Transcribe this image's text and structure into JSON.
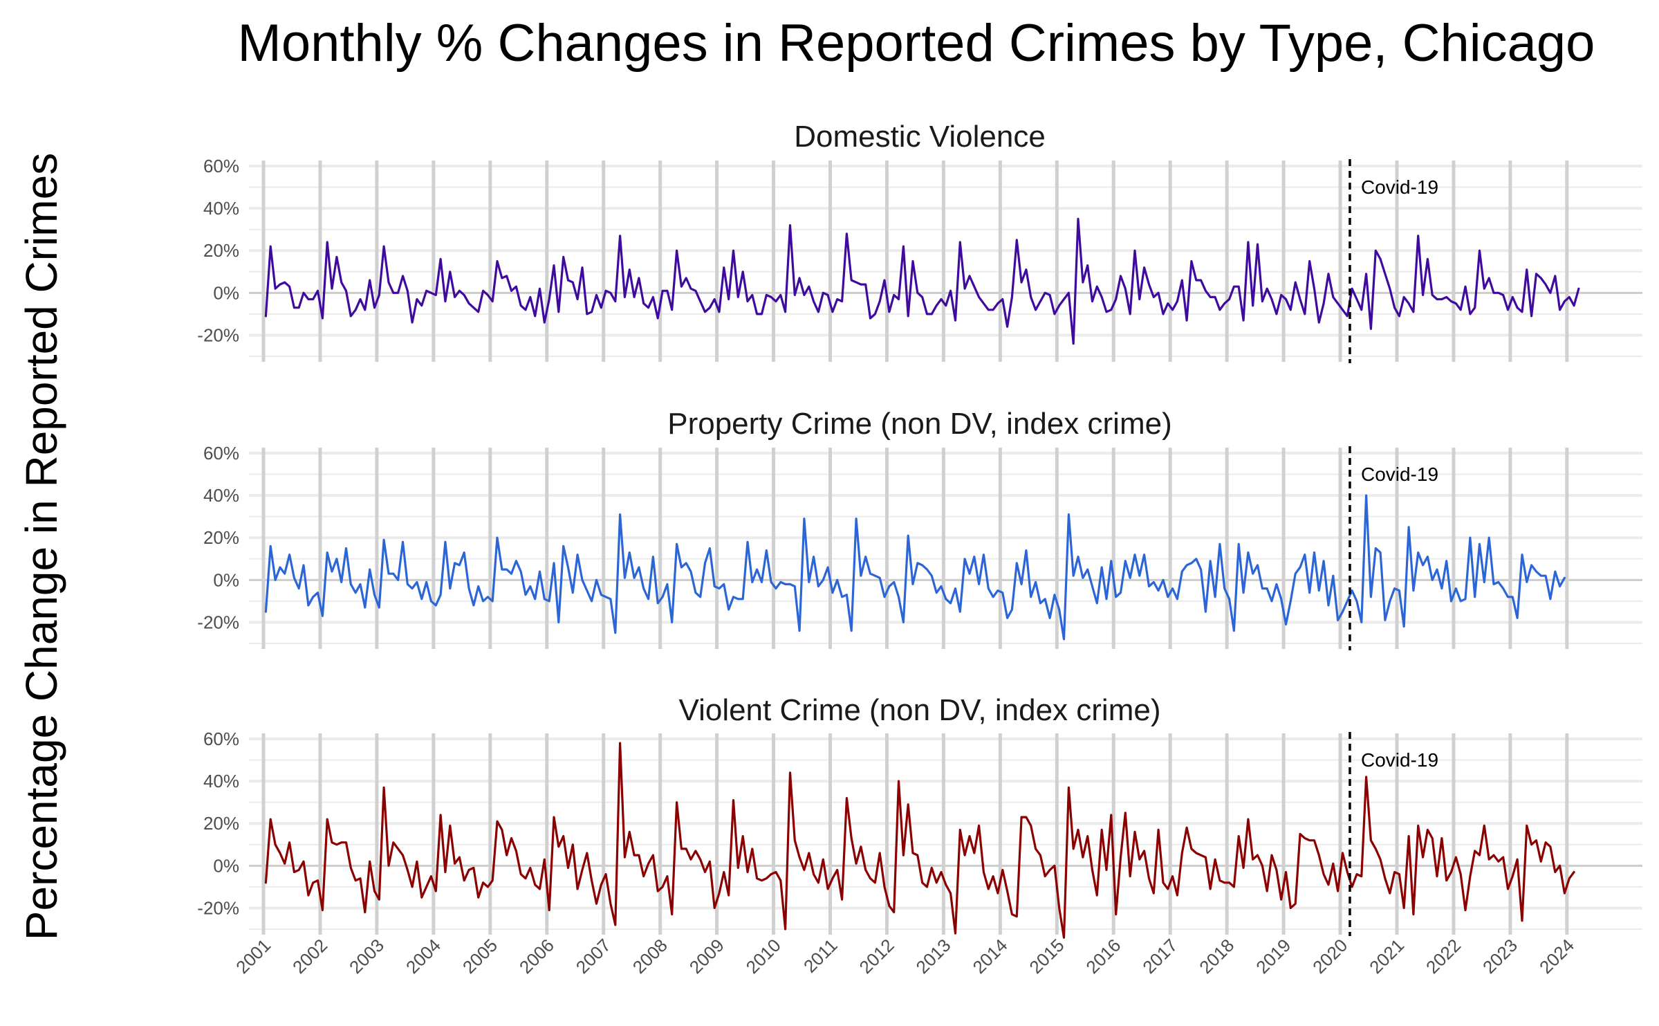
{
  "chart_data": {
    "type": "line",
    "title": "Monthly % Changes in Reported Crimes by Type, Chicago",
    "ylabel": "Percentage Change in Reported Crimes",
    "xlabel": "",
    "ylim": [
      -30,
      60
    ],
    "yticks": [
      -20,
      0,
      20,
      40,
      60
    ],
    "ytick_labels": [
      "-20%",
      "0%",
      "20%",
      "40%",
      "60%"
    ],
    "xlim": [
      2001,
      2024
    ],
    "xticks": [
      "2001",
      "2002",
      "2003",
      "2004",
      "2005",
      "2006",
      "2007",
      "2008",
      "2009",
      "2010",
      "2011",
      "2012",
      "2013",
      "2014",
      "2015",
      "2016",
      "2017",
      "2018",
      "2019",
      "2020",
      "2021",
      "2022",
      "2023",
      "2024"
    ],
    "grid": true,
    "legend": "none",
    "annotation": {
      "label": "Covid-19",
      "x": 2020.17,
      "style": "dashed vertical line"
    },
    "panels": [
      {
        "name": "Domestic Violence",
        "color": "#3f0a9e",
        "values": [
          -11,
          22,
          2,
          4,
          5,
          3,
          -7,
          -7,
          0,
          -3,
          -3,
          1,
          -12,
          24,
          2,
          17,
          5,
          1,
          -11,
          -8,
          -3,
          -8,
          6,
          -7,
          -1,
          22,
          5,
          0,
          0,
          8,
          1,
          -14,
          -3,
          -6,
          1,
          0,
          -1,
          16,
          -4,
          10,
          -2,
          1,
          -1,
          -5,
          -7,
          -9,
          1,
          -1,
          -4,
          15,
          7,
          8,
          1,
          3,
          -6,
          -8,
          -2,
          -11,
          2,
          -14,
          -3,
          13,
          -9,
          17,
          6,
          5,
          -3,
          12,
          -10,
          -9,
          -1,
          -7,
          1,
          0,
          -4,
          27,
          -2,
          11,
          -2,
          7,
          -5,
          -7,
          -2,
          -12,
          1,
          1,
          -8,
          20,
          3,
          7,
          2,
          1,
          -4,
          -9,
          -7,
          -3,
          -9,
          12,
          -3,
          20,
          -2,
          10,
          -4,
          -1,
          -10,
          -10,
          -1,
          -2,
          -4,
          -1,
          -9,
          32,
          -1,
          7,
          -1,
          3,
          -4,
          -9,
          0,
          -1,
          -9,
          -3,
          -4,
          28,
          6,
          5,
          4,
          4,
          -12,
          -10,
          -4,
          6,
          -9,
          -1,
          -3,
          22,
          -11,
          15,
          0,
          -2,
          -10,
          -10,
          -6,
          -3,
          -6,
          1,
          -13,
          24,
          2,
          8,
          3,
          -2,
          -5,
          -8,
          -8,
          -5,
          -3,
          -16,
          -2,
          25,
          5,
          11,
          -2,
          -8,
          -4,
          0,
          -1,
          -10,
          -6,
          -3,
          0,
          -24,
          35,
          5,
          13,
          -4,
          3,
          -2,
          -9,
          -8,
          -3,
          8,
          2,
          -10,
          20,
          -3,
          12,
          4,
          -2,
          0,
          -10,
          -5,
          -8,
          -4,
          6,
          -13,
          15,
          6,
          6,
          1,
          -2,
          -2,
          -8,
          -5,
          -3,
          3,
          3,
          -13,
          24,
          -6,
          23,
          -4,
          2,
          -3,
          -10,
          -1,
          -3,
          -8,
          5,
          -3,
          -10,
          15,
          2,
          -14,
          -5,
          9,
          -2,
          -5,
          -8,
          -11,
          2,
          -3,
          -8,
          9,
          -17,
          20,
          16,
          9,
          2,
          -7,
          -11,
          -2,
          -5,
          -9,
          27,
          -1,
          16,
          -1,
          -3,
          -3,
          -2,
          -4,
          -5,
          -8,
          3,
          -10,
          -7,
          20,
          2,
          7,
          0,
          0,
          -1,
          -8,
          -2,
          -7,
          -9,
          11,
          -11,
          9,
          7,
          4,
          0,
          8,
          -8,
          -4,
          -2,
          -6,
          2
        ]
      },
      {
        "name": "Property Crime (non DV, index crime)",
        "color": "#2c66d6",
        "values": [
          -15,
          16,
          0,
          6,
          3,
          12,
          1,
          -4,
          7,
          -12,
          -8,
          -6,
          -17,
          13,
          4,
          10,
          -1,
          15,
          -2,
          -6,
          -2,
          -13,
          5,
          -7,
          -13,
          19,
          3,
          3,
          0,
          18,
          -2,
          -4,
          -1,
          -9,
          -1,
          -10,
          -12,
          -7,
          18,
          -4,
          8,
          7,
          13,
          -4,
          -12,
          -3,
          -10,
          -8,
          -10,
          20,
          5,
          5,
          3,
          9,
          4,
          -7,
          -3,
          -9,
          4,
          -9,
          -10,
          8,
          -20,
          16,
          6,
          -6,
          12,
          0,
          -5,
          -10,
          0,
          -7,
          -8,
          -9,
          -25,
          31,
          1,
          13,
          1,
          6,
          -4,
          -9,
          11,
          -11,
          -8,
          -2,
          -20,
          17,
          6,
          8,
          4,
          -6,
          -8,
          8,
          15,
          -3,
          -4,
          -2,
          -14,
          -8,
          -9,
          -9,
          18,
          -1,
          5,
          -1,
          14,
          -1,
          -4,
          -1,
          -2,
          -2,
          -3,
          -24,
          29,
          -1,
          11,
          -3,
          0,
          6,
          -6,
          0,
          -8,
          -7,
          -24,
          29,
          2,
          11,
          3,
          2,
          1,
          -8,
          -3,
          -1,
          -8,
          -20,
          21,
          -2,
          8,
          7,
          5,
          2,
          -6,
          -3,
          -9,
          -11,
          -4,
          -15,
          10,
          3,
          11,
          -2,
          12,
          -4,
          -8,
          -5,
          -6,
          -18,
          -14,
          8,
          -2,
          14,
          -8,
          -1,
          -11,
          -9,
          -18,
          -7,
          -14,
          -28,
          31,
          2,
          11,
          1,
          5,
          -3,
          -11,
          6,
          -9,
          9,
          -8,
          -6,
          9,
          1,
          12,
          2,
          12,
          -3,
          -1,
          -5,
          0,
          -8,
          -4,
          -9,
          4,
          7,
          8,
          10,
          5,
          -15,
          9,
          -8,
          17,
          -4,
          -9,
          -24,
          17,
          -6,
          13,
          3,
          7,
          -4,
          -4,
          -10,
          -2,
          -9,
          -21,
          -10,
          3,
          6,
          12,
          -6,
          13,
          -5,
          9,
          -12,
          2,
          -19,
          -15,
          -10,
          -5,
          -10,
          -20,
          40,
          -8,
          15,
          13,
          -19,
          -10,
          -4,
          -5,
          -22,
          25,
          -5,
          13,
          7,
          11,
          0,
          5,
          -4,
          9,
          -10,
          -4,
          -10,
          -9,
          20,
          -8,
          17,
          -1,
          20,
          -2,
          -1,
          -4,
          -8,
          -8,
          -18,
          12,
          -1,
          7,
          4,
          2,
          2,
          -9,
          4,
          -3,
          1
        ]
      },
      {
        "name": "Violent Crime (non DV, index crime)",
        "color": "#8b0000",
        "values": [
          -8,
          22,
          10,
          6,
          1,
          11,
          -3,
          -2,
          2,
          -14,
          -8,
          -7,
          -21,
          22,
          11,
          10,
          11,
          11,
          -1,
          -7,
          -6,
          -22,
          2,
          -12,
          -16,
          37,
          0,
          11,
          8,
          5,
          -2,
          -10,
          2,
          -15,
          -10,
          -5,
          -12,
          24,
          -3,
          19,
          1,
          4,
          -7,
          -2,
          -1,
          -15,
          -8,
          -10,
          -7,
          21,
          17,
          5,
          13,
          7,
          -4,
          -6,
          -1,
          -9,
          -11,
          3,
          -21,
          23,
          9,
          14,
          -1,
          10,
          -11,
          -2,
          6,
          -7,
          -18,
          -9,
          -4,
          -18,
          -28,
          58,
          4,
          16,
          5,
          5,
          -5,
          1,
          5,
          -12,
          -10,
          -5,
          -23,
          30,
          8,
          8,
          3,
          7,
          3,
          -3,
          2,
          -20,
          -13,
          -3,
          -14,
          31,
          -1,
          14,
          -3,
          8,
          -6,
          -7,
          -6,
          -4,
          -3,
          -7,
          -30,
          44,
          12,
          4,
          -2,
          6,
          -4,
          -8,
          3,
          -11,
          -6,
          -2,
          -16,
          32,
          13,
          1,
          9,
          -2,
          -6,
          -8,
          6,
          -10,
          -19,
          -22,
          40,
          5,
          29,
          6,
          5,
          -8,
          -10,
          -1,
          -8,
          -3,
          -9,
          -13,
          -32,
          17,
          5,
          14,
          6,
          19,
          -3,
          -11,
          -5,
          -13,
          -2,
          -12,
          -23,
          -24,
          23,
          23,
          19,
          8,
          5,
          -5,
          -2,
          0,
          -20,
          -34,
          37,
          8,
          17,
          4,
          14,
          -2,
          -14,
          17,
          -2,
          24,
          -23,
          4,
          25,
          -5,
          16,
          3,
          7,
          -6,
          -13,
          17,
          -8,
          -11,
          -5,
          -14,
          6,
          18,
          8,
          6,
          5,
          4,
          -11,
          3,
          -7,
          -8,
          -8,
          -10,
          14,
          -1,
          22,
          3,
          5,
          0,
          -12,
          5,
          -2,
          -16,
          -3,
          -20,
          -18,
          15,
          13,
          12,
          12,
          5,
          -4,
          -9,
          1,
          -12,
          6,
          -3,
          -10,
          -4,
          -5,
          42,
          12,
          8,
          3,
          -6,
          -13,
          -3,
          -4,
          -20,
          14,
          -23,
          19,
          4,
          17,
          13,
          -5,
          13,
          -7,
          -3,
          4,
          -4,
          -21,
          -5,
          7,
          5,
          19,
          3,
          5,
          2,
          4,
          -11,
          -5,
          3,
          -26,
          19,
          10,
          12,
          2,
          11,
          9,
          -3,
          0,
          -13,
          -6,
          -3
        ]
      }
    ]
  }
}
